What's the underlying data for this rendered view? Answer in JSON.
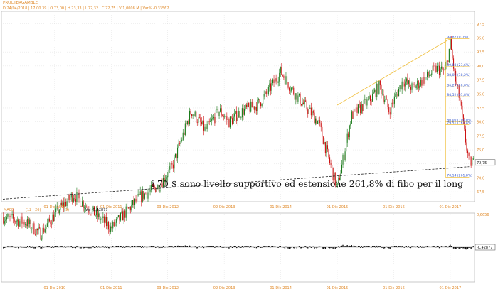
{
  "header": {
    "symbol": "PROCTERGAMBLE",
    "info_line": "D 24/04/2018 | 17.00.39 | O 73,00 | H 73,33 | L 72,32 | C 72,75 | V 1,0008 M | Var% -0,33562"
  },
  "macd_header": {
    "name": "MACD",
    "params": "(12 , 26)",
    "signal": "9)",
    "value_label": "Val -0,42877"
  },
  "annotation": "i 70 $ sono livello supportivo ed estensione 261,8% di fibo per il long",
  "colors": {
    "up": "#1a7a1a",
    "down": "#cc1111",
    "fib_line": "#f0c040",
    "fib_text": "#3355cc",
    "axis_text": "#e08a2a",
    "grid": "#d8d8d8"
  },
  "chart_data": [
    {
      "type": "candlestick",
      "title": "",
      "xlabel": "",
      "ylabel": "",
      "x_ticks": [
        "01-Dic-2010",
        "01-Dic-2011",
        "03-Dic-2012",
        "02-Dic-2013",
        "01-Dic-2014",
        "01-Dic-2015",
        "01-Dic-2016",
        "01-Dic-2017"
      ],
      "y_ticks": [
        67.5,
        70,
        72.5,
        75,
        77.5,
        80,
        82.5,
        85,
        87.5,
        90,
        92.5,
        95,
        97.5
      ],
      "ylim": [
        66.0,
        99.5
      ],
      "last_price": 72.75,
      "price_path": {
        "anchor_dates": [
          "2010-01",
          "2010-06",
          "2010-09",
          "2011-01",
          "2011-04",
          "2011-08",
          "2011-12",
          "2012-06",
          "2012-10",
          "2013-01",
          "2013-05",
          "2013-08",
          "2013-11",
          "2014-01",
          "2014-04",
          "2014-07",
          "2014-09",
          "2014-12",
          "2015-03",
          "2015-06",
          "2015-08",
          "2015-12",
          "2016-03",
          "2016-07",
          "2016-09",
          "2016-11",
          "2017-02",
          "2017-04",
          "2017-07",
          "2017-09",
          "2017-11",
          "2017-12",
          "2018-01",
          "2018-02",
          "2018-03",
          "2018-04"
        ],
        "anchor_close": [
          63.0,
          62.0,
          60.0,
          64.5,
          67.0,
          64.0,
          61.0,
          66.5,
          68.5,
          72.0,
          82.0,
          78.5,
          82.0,
          80.0,
          82.0,
          83.0,
          85.0,
          89.0,
          85.0,
          82.0,
          80.0,
          68.0,
          81.0,
          84.0,
          86.5,
          82.0,
          87.5,
          86.0,
          88.0,
          89.5,
          89.0,
          94.0,
          88.0,
          84.0,
          78.0,
          72.75
        ]
      },
      "fibonacci": [
        {
          "label": "94,87 (0,0%)",
          "value": 94.87
        },
        {
          "label": "89,88 (23,6%)",
          "value": 89.88
        },
        {
          "label": "88,05 (38,2%)",
          "value": 88.05
        },
        {
          "label": "86,27 (50,0%)",
          "value": 86.27
        },
        {
          "label": "84,52 (61,8%)",
          "value": 84.52
        },
        {
          "label": "80,00 (100,0%)",
          "value": 80.0
        },
        {
          "label": "79,51 (161,8%)",
          "value": 79.51
        },
        {
          "label": "70,14 (261,8%)",
          "value": 70.14
        }
      ],
      "trendlines": [
        {
          "style": "dashed",
          "from": {
            "date": "2010-01",
            "price": 66.2
          },
          "to": {
            "date": "2018-04",
            "price": 72.0
          }
        },
        {
          "style": "solid",
          "color": "fib",
          "from": {
            "date": "2015-12",
            "price": 83.0
          },
          "to": {
            "date": "2017-12",
            "price": 94.87
          }
        }
      ],
      "grid": true
    },
    {
      "type": "histogram",
      "name": "MACD",
      "value": -0.42877,
      "y_label_top": "0,6656",
      "x_ticks": [
        "01-Dic-2010",
        "01-Dic-2011",
        "03-Dic-2012",
        "02-Dic-2013",
        "01-Dic-2014",
        "01-Dic-2015",
        "01-Dic-2016",
        "01-Dic-2017"
      ],
      "grid": true
    }
  ]
}
